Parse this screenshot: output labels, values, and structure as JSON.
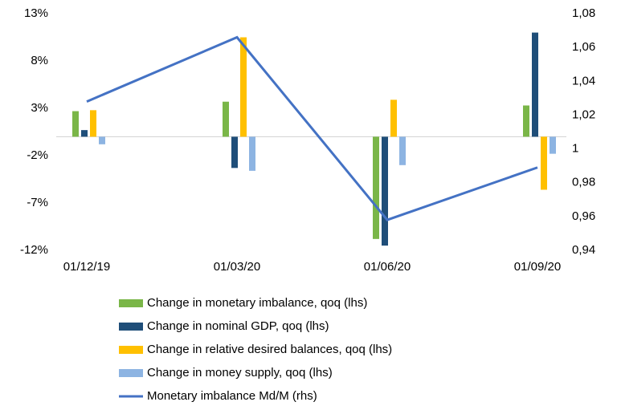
{
  "chart_data": {
    "type": "bar",
    "categories": [
      "01/12/19",
      "01/03/20",
      "01/06/20",
      "01/09/20"
    ],
    "series": [
      {
        "name": "Change in monetary imbalance, qoq (lhs)",
        "color": "#7ab648",
        "values": [
          2.7,
          3.7,
          -10.8,
          3.3
        ]
      },
      {
        "name": "Change in nominal GDP, qoq (lhs)",
        "color": "#1f4e79",
        "values": [
          0.7,
          -3.3,
          -11.5,
          11.0
        ]
      },
      {
        "name": "Change in relative desired balances, qoq (lhs)",
        "color": "#ffc000",
        "values": [
          2.8,
          10.5,
          3.9,
          -5.6
        ]
      },
      {
        "name": "Change in money supply, qoq (lhs)",
        "color": "#8db4e2",
        "values": [
          -0.8,
          -3.6,
          -3.0,
          -1.8
        ]
      },
      {
        "name": "Monetary imbalance Md/M (rhs)",
        "color": "#4472c4",
        "type": "line",
        "axis": "y2",
        "values": [
          1.028,
          1.066,
          0.958,
          0.989
        ]
      }
    ],
    "ylim": [
      -12,
      13
    ],
    "yticks": [
      {
        "value": -12,
        "label": "-12%"
      },
      {
        "value": -7,
        "label": "-7%"
      },
      {
        "value": -2,
        "label": "-2%"
      },
      {
        "value": 3,
        "label": "3%"
      },
      {
        "value": 8,
        "label": "8%"
      },
      {
        "value": 13,
        "label": "13%"
      }
    ],
    "y2lim": [
      0.94,
      1.08
    ],
    "y2ticks": [
      {
        "value": 0.94,
        "label": "0,94"
      },
      {
        "value": 0.96,
        "label": "0,96"
      },
      {
        "value": 0.98,
        "label": "0,98"
      },
      {
        "value": 1,
        "label": "1"
      },
      {
        "value": 1.02,
        "label": "1,02"
      },
      {
        "value": 1.04,
        "label": "1,04"
      },
      {
        "value": 1.06,
        "label": "1,06"
      },
      {
        "value": 1.08,
        "label": "1,08"
      }
    ],
    "grid": false
  }
}
